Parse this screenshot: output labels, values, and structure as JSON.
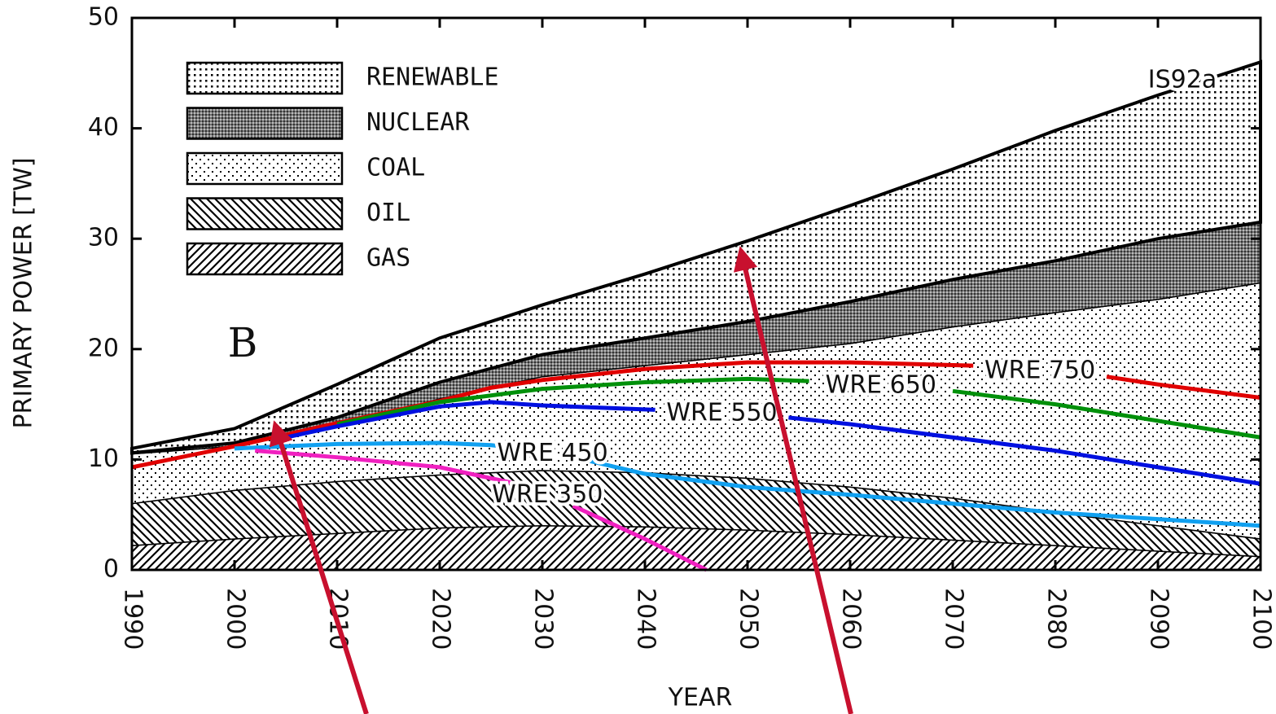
{
  "chart_data": {
    "type": "area",
    "y_label": "PRIMARY POWER [TW]",
    "x_label": "YEAR",
    "panel_label": "B",
    "total_label": "IS92a",
    "legend": "upper left",
    "x": [
      1990,
      2000,
      2010,
      2020,
      2030,
      2040,
      2050,
      2060,
      2070,
      2080,
      2090,
      2100
    ],
    "xlim": [
      1990,
      2100
    ],
    "xticks": [
      1990,
      2000,
      2010,
      2020,
      2030,
      2040,
      2050,
      2060,
      2070,
      2080,
      2090,
      2100
    ],
    "ylim": [
      0,
      50
    ],
    "yticks": [
      0,
      10,
      20,
      30,
      40,
      50
    ],
    "series": [
      {
        "name": "GAS",
        "pattern": "hatch-up",
        "values": [
          2.2,
          2.8,
          3.3,
          3.8,
          4,
          3.9,
          3.6,
          3.2,
          2.7,
          2.2,
          1.7,
          1.2
        ]
      },
      {
        "name": "OIL",
        "pattern": "hatch-down",
        "values": [
          3.8,
          4.4,
          4.7,
          4.8,
          5,
          4.9,
          4.7,
          4.3,
          3.8,
          3,
          2.3,
          1.6
        ]
      },
      {
        "name": "COAL",
        "pattern": "dots-sparse",
        "values": [
          4.5,
          4,
          5,
          6.9,
          8.5,
          9.7,
          11.2,
          13,
          15.5,
          18.1,
          20.5,
          23.2
        ]
      },
      {
        "name": "NUCLEAR",
        "pattern": "gray",
        "values": [
          0.1,
          0.3,
          0.8,
          1.5,
          2,
          2.5,
          3,
          3.8,
          4.3,
          4.7,
          5.5,
          5.5
        ]
      },
      {
        "name": "RENEWABLE",
        "pattern": "dots-dense",
        "values": [
          0.4,
          1.3,
          3,
          4,
          4.5,
          5.8,
          7.3,
          8.7,
          10,
          11.8,
          13,
          14.5
        ]
      }
    ],
    "lines": [
      {
        "name": "WRE 750",
        "color": "#e00000",
        "x": [
          1990,
          2000,
          2010,
          2020,
          2025,
          2030,
          2040,
          2050,
          2060,
          2072,
          2078,
          2085,
          2090,
          2100
        ],
        "values": [
          9.3,
          11.2,
          13.3,
          15.3,
          16.5,
          17.2,
          18.2,
          18.8,
          18.8,
          18.5,
          null,
          17.5,
          16.8,
          15.6
        ]
      },
      {
        "name": "WRE 650",
        "color": "#00900a",
        "x": [
          2010,
          2020,
          2030,
          2040,
          2050,
          2056,
          2063,
          2070,
          2080,
          2090,
          2100
        ],
        "values": [
          13.2,
          15.2,
          16.4,
          17,
          17.3,
          17.1,
          null,
          16.2,
          15,
          13.5,
          12
        ]
      },
      {
        "name": "WRE 550",
        "color": "#0010e0",
        "x": [
          2005,
          2010,
          2020,
          2025,
          2030,
          2041,
          2047,
          2054,
          2060,
          2070,
          2080,
          2090,
          2100
        ],
        "values": [
          12,
          13,
          14.8,
          15.2,
          14.9,
          14.5,
          null,
          13.8,
          13.2,
          12,
          10.8,
          9.3,
          7.8
        ]
      },
      {
        "name": "WRE 450",
        "color": "#10a0f0",
        "x": [
          2000,
          2010,
          2020,
          2025,
          2028,
          2031,
          2034,
          2040,
          2050,
          2060,
          2070,
          2080,
          2090,
          2100
        ],
        "values": [
          11,
          11.4,
          11.5,
          11.3,
          11,
          null,
          10,
          8.7,
          7.5,
          6.8,
          6,
          5.2,
          4.6,
          4
        ]
      },
      {
        "name": "WRE 350",
        "color": "#f020c0",
        "x": [
          2002,
          2010,
          2020,
          2028,
          2030,
          2033,
          2040,
          2046
        ],
        "values": [
          10.8,
          10.2,
          9.3,
          7.7,
          null,
          5.8,
          2.8,
          0
        ]
      }
    ]
  }
}
